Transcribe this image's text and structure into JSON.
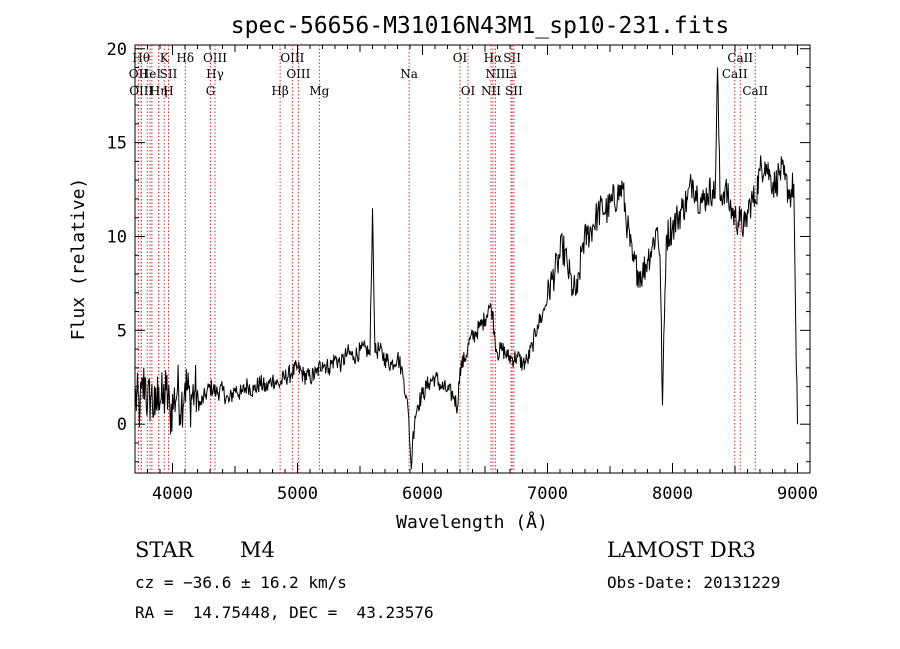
{
  "chart_data": {
    "type": "line",
    "title": "spec-56656-M31016N43M1_sp10-231.fits",
    "xlabel": "Wavelength (Å)",
    "ylabel": "Flux (relative)",
    "xlim": [
      3700,
      9100
    ],
    "ylim": [
      -2.6,
      20.2
    ],
    "x_ticks": [
      4000,
      5000,
      6000,
      7000,
      8000,
      9000
    ],
    "y_ticks": [
      0,
      5,
      10,
      15,
      20
    ],
    "grid": false,
    "line_color": "#000000",
    "marker_color": "#cc3333",
    "spectrum": {
      "x": [
        3700,
        3740,
        3780,
        3800,
        3830,
        3860,
        3890,
        3920,
        3950,
        3980,
        4010,
        4040,
        4070,
        4100,
        4140,
        4180,
        4220,
        4260,
        4300,
        4350,
        4400,
        4450,
        4500,
        4550,
        4600,
        4650,
        4700,
        4750,
        4800,
        4850,
        4900,
        4950,
        5000,
        5050,
        5100,
        5150,
        5200,
        5250,
        5300,
        5350,
        5400,
        5450,
        5500,
        5550,
        5580,
        5600,
        5620,
        5650,
        5700,
        5750,
        5800,
        5830,
        5850,
        5870,
        5890,
        5900,
        5910,
        5920,
        5940,
        5960,
        6000,
        6050,
        6100,
        6150,
        6200,
        6250,
        6280,
        6300,
        6340,
        6380,
        6420,
        6460,
        6500,
        6530,
        6560,
        6580,
        6600,
        6640,
        6680,
        6720,
        6760,
        6800,
        6840,
        6880,
        6920,
        6960,
        7000,
        7040,
        7080,
        7120,
        7160,
        7200,
        7240,
        7280,
        7320,
        7360,
        7400,
        7440,
        7480,
        7520,
        7560,
        7600,
        7640,
        7680,
        7720,
        7760,
        7800,
        7840,
        7880,
        7900,
        7920,
        7950,
        8000,
        8040,
        8080,
        8120,
        8160,
        8200,
        8240,
        8280,
        8320,
        8340,
        8360,
        8380,
        8420,
        8460,
        8500,
        8540,
        8580,
        8620,
        8660,
        8700,
        8740,
        8780,
        8820,
        8860,
        8900,
        8940,
        8970,
        8990,
        9000
      ],
      "y": [
        1.5,
        0.8,
        2.5,
        1.0,
        1.6,
        0.5,
        2.0,
        1.1,
        1.8,
        0.6,
        1.2,
        1.9,
        1.0,
        2.2,
        1.3,
        1.8,
        1.0,
        1.5,
        2.0,
        1.7,
        1.8,
        1.2,
        1.9,
        1.6,
        2.1,
        1.8,
        2.2,
        1.9,
        2.4,
        2.1,
        2.5,
        2.7,
        3.0,
        2.6,
        2.5,
        2.7,
        3.3,
        3.0,
        3.5,
        3.2,
        3.8,
        3.6,
        3.9,
        4.0,
        3.7,
        11.5,
        3.8,
        4.0,
        3.5,
        3.2,
        3.6,
        3.0,
        2.4,
        1.5,
        0.3,
        -1.2,
        -2.4,
        -1.0,
        0.4,
        1.0,
        1.6,
        2.2,
        2.5,
        2.0,
        1.8,
        1.5,
        0.9,
        3.0,
        3.5,
        4.5,
        4.8,
        5.2,
        5.6,
        6.3,
        6.0,
        4.5,
        3.8,
        4.0,
        3.6,
        3.5,
        3.6,
        3.2,
        3.4,
        4.2,
        5.3,
        5.8,
        6.8,
        7.8,
        8.5,
        9.5,
        8.4,
        7.2,
        7.0,
        9.6,
        10.1,
        10.5,
        11.2,
        11.5,
        11.4,
        11.9,
        12.2,
        12.6,
        10.5,
        8.7,
        8.2,
        8.0,
        8.8,
        9.5,
        10.5,
        9.0,
        1.0,
        10.0,
        10.5,
        11.0,
        11.5,
        12.0,
        13.0,
        12.2,
        11.8,
        12.3,
        12.5,
        12.0,
        19.0,
        12.0,
        12.6,
        11.6,
        11.0,
        10.8,
        10.5,
        11.8,
        12.0,
        13.5,
        14.0,
        13.2,
        12.7,
        13.5,
        13.0,
        12.2,
        12.8,
        3.0,
        0.0
      ]
    },
    "line_markers": [
      {
        "wave": 3750,
        "row": 1,
        "label": "Hθ"
      },
      {
        "wave": 3798,
        "row": 1,
        "label": ""
      },
      {
        "wave": 3835,
        "row": 1,
        "label": ""
      },
      {
        "wave": 3889,
        "row": 1,
        "label": ""
      },
      {
        "wave": 3934,
        "row": 1,
        "label": "K"
      },
      {
        "wave": 4102,
        "row": 1,
        "label": "Hδ"
      },
      {
        "wave": 4340,
        "row": 1,
        "label": "OIII"
      },
      {
        "wave": 4959,
        "row": 1,
        "label": "OIII"
      },
      {
        "wave": 6300,
        "row": 1,
        "label": "OI"
      },
      {
        "wave": 6563,
        "row": 1,
        "label": "Hα"
      },
      {
        "wave": 6717,
        "row": 1,
        "label": "SII"
      },
      {
        "wave": 8542,
        "row": 1,
        "label": "CaII"
      },
      {
        "wave": 3727,
        "row": 2,
        "label": "OII"
      },
      {
        "wave": 3820,
        "row": 2,
        "label": "HeI"
      },
      {
        "wave": 3968,
        "row": 2,
        "label": "SII"
      },
      {
        "wave": 4340,
        "row": 2,
        "label": "Hγ"
      },
      {
        "wave": 5007,
        "row": 2,
        "label": "OIII"
      },
      {
        "wave": 5893,
        "row": 2,
        "label": "Na"
      },
      {
        "wave": 6583,
        "row": 2,
        "label": "NII"
      },
      {
        "wave": 6708,
        "row": 2,
        "label": "Li"
      },
      {
        "wave": 8498,
        "row": 2,
        "label": "CaII"
      },
      {
        "wave": 3750,
        "row": 3,
        "label": "OIII"
      },
      {
        "wave": 3889,
        "row": 3,
        "label": "Hη"
      },
      {
        "wave": 3968,
        "row": 3,
        "label": "H"
      },
      {
        "wave": 4304,
        "row": 3,
        "label": "G"
      },
      {
        "wave": 4861,
        "row": 3,
        "label": "Hβ"
      },
      {
        "wave": 5175,
        "row": 3,
        "label": "Mg"
      },
      {
        "wave": 6364,
        "row": 3,
        "label": "OI"
      },
      {
        "wave": 6548,
        "row": 3,
        "label": "NII"
      },
      {
        "wave": 6731,
        "row": 3,
        "label": "SII"
      },
      {
        "wave": 8662,
        "row": 3,
        "label": "CaII"
      }
    ]
  },
  "info": {
    "object_class": "STAR",
    "subclass": "M4",
    "survey": "LAMOST DR3",
    "redshift": "cz = −36.6 ± 16.2 km/s",
    "obs_date": "Obs-Date: 20131229",
    "coords": "RA =  14.75448, DEC =  43.23576"
  }
}
